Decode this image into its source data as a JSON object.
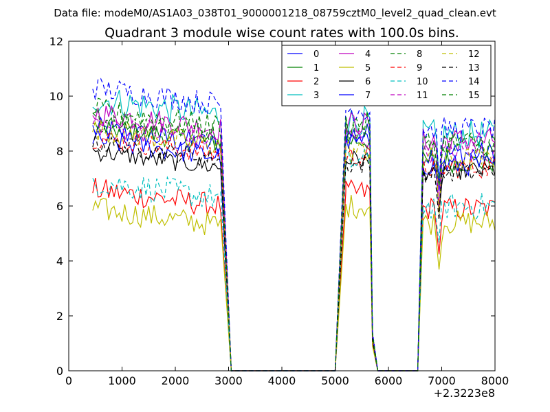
{
  "suptitle": "Data file: modeM0/AS1A03_038T01_9000001218_08759cztM0_level2_quad_clean.evt",
  "chart_data": {
    "type": "line",
    "title": "Quadrant 3 module wise count rates with 100.0s bins.",
    "xlabel": "",
    "ylabel": "",
    "x_offset_label": "+2.3223e8",
    "xlim": [
      0,
      8000
    ],
    "ylim": [
      0,
      12
    ],
    "xticks": [
      "0",
      "1000",
      "2000",
      "3000",
      "4000",
      "5000",
      "6000",
      "7000",
      "8000"
    ],
    "yticks": [
      "0",
      "2",
      "4",
      "6",
      "8",
      "10",
      "12"
    ],
    "grid": false,
    "legend_position": "top-right",
    "segments": [
      [
        450,
        2850
      ],
      [
        5200,
        5650
      ],
      [
        6650,
        8000
      ]
    ],
    "drops": [
      [
        2850,
        3050
      ],
      [
        5000,
        5200
      ],
      [
        5650,
        5850
      ],
      [
        6550,
        6650
      ]
    ],
    "series": [
      {
        "name": "0",
        "color": "#0000ff",
        "style": "solid",
        "levels": [
          8.2,
          8.6,
          7.9
        ],
        "noise": 0.45
      },
      {
        "name": "1",
        "color": "#008000",
        "style": "solid",
        "levels": [
          8.3,
          8.4,
          7.6
        ],
        "noise": 0.4
      },
      {
        "name": "2",
        "color": "#ff0000",
        "style": "solid",
        "levels": [
          6.0,
          6.5,
          5.9
        ],
        "noise": 0.45
      },
      {
        "name": "3",
        "color": "#00bfbf",
        "style": "solid",
        "levels": [
          9.3,
          9.1,
          8.6
        ],
        "noise": 0.55
      },
      {
        "name": "4",
        "color": "#bf00bf",
        "style": "solid",
        "levels": [
          8.8,
          9.0,
          8.4
        ],
        "noise": 0.45
      },
      {
        "name": "5",
        "color": "#bfbf00",
        "style": "solid",
        "levels": [
          5.3,
          6.0,
          5.4
        ],
        "noise": 0.45
      },
      {
        "name": "6",
        "color": "#000000",
        "style": "solid",
        "levels": [
          7.4,
          7.7,
          7.3
        ],
        "noise": 0.35
      },
      {
        "name": "7",
        "color": "#0000ff",
        "style": "solid",
        "levels": [
          7.8,
          8.3,
          7.5
        ],
        "noise": 0.4
      },
      {
        "name": "8",
        "color": "#008000",
        "style": "dashed",
        "levels": [
          8.6,
          8.8,
          8.3
        ],
        "noise": 0.45
      },
      {
        "name": "9",
        "color": "#ff0000",
        "style": "dashed",
        "levels": [
          7.9,
          7.8,
          7.4
        ],
        "noise": 0.4
      },
      {
        "name": "10",
        "color": "#00bfbf",
        "style": "dashed",
        "levels": [
          6.3,
          7.6,
          6.0
        ],
        "noise": 0.5
      },
      {
        "name": "11",
        "color": "#bf00bf",
        "style": "dashed",
        "levels": [
          8.4,
          8.5,
          8.0
        ],
        "noise": 0.45
      },
      {
        "name": "12",
        "color": "#bfbf00",
        "style": "dashed",
        "levels": [
          8.2,
          8.0,
          7.7
        ],
        "noise": 0.45
      },
      {
        "name": "13",
        "color": "#000000",
        "style": "dashed",
        "levels": [
          7.7,
          7.5,
          7.2
        ],
        "noise": 0.35
      },
      {
        "name": "14",
        "color": "#0000ff",
        "style": "dashed",
        "levels": [
          9.7,
          9.5,
          8.8
        ],
        "noise": 0.45
      },
      {
        "name": "15",
        "color": "#008000",
        "style": "dashed",
        "levels": [
          8.9,
          9.0,
          8.3
        ],
        "noise": 0.45
      }
    ]
  }
}
